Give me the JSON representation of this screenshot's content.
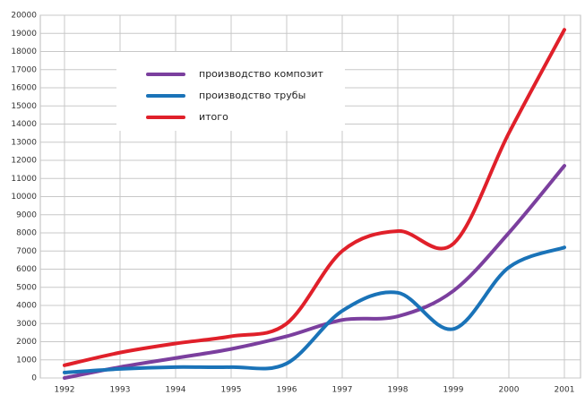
{
  "chart_data": {
    "type": "line",
    "categories": [
      "1992",
      "1993",
      "1994",
      "1995",
      "1996",
      "1997",
      "1998",
      "1999",
      "2000",
      "2001"
    ],
    "series": [
      {
        "name": "производство композит",
        "color": "#7b3f9e",
        "values": [
          0,
          600,
          1100,
          1600,
          2300,
          3200,
          3400,
          4800,
          8000,
          11700
        ]
      },
      {
        "name": "производство трубы",
        "color": "#1a73b8",
        "values": [
          300,
          500,
          600,
          600,
          800,
          3700,
          4700,
          2700,
          6100,
          7200
        ]
      },
      {
        "name": "итого",
        "color": "#e0202a",
        "values": [
          700,
          1400,
          1900,
          2300,
          3000,
          7000,
          8100,
          7400,
          13500,
          19200
        ]
      }
    ],
    "ylim": [
      0,
      20000
    ],
    "yticks": [
      0,
      1000,
      2000,
      3000,
      4000,
      5000,
      6000,
      7000,
      8000,
      9000,
      10000,
      11000,
      12000,
      13000,
      14000,
      15000,
      16000,
      17000,
      18000,
      19000,
      20000
    ],
    "grid": true
  }
}
